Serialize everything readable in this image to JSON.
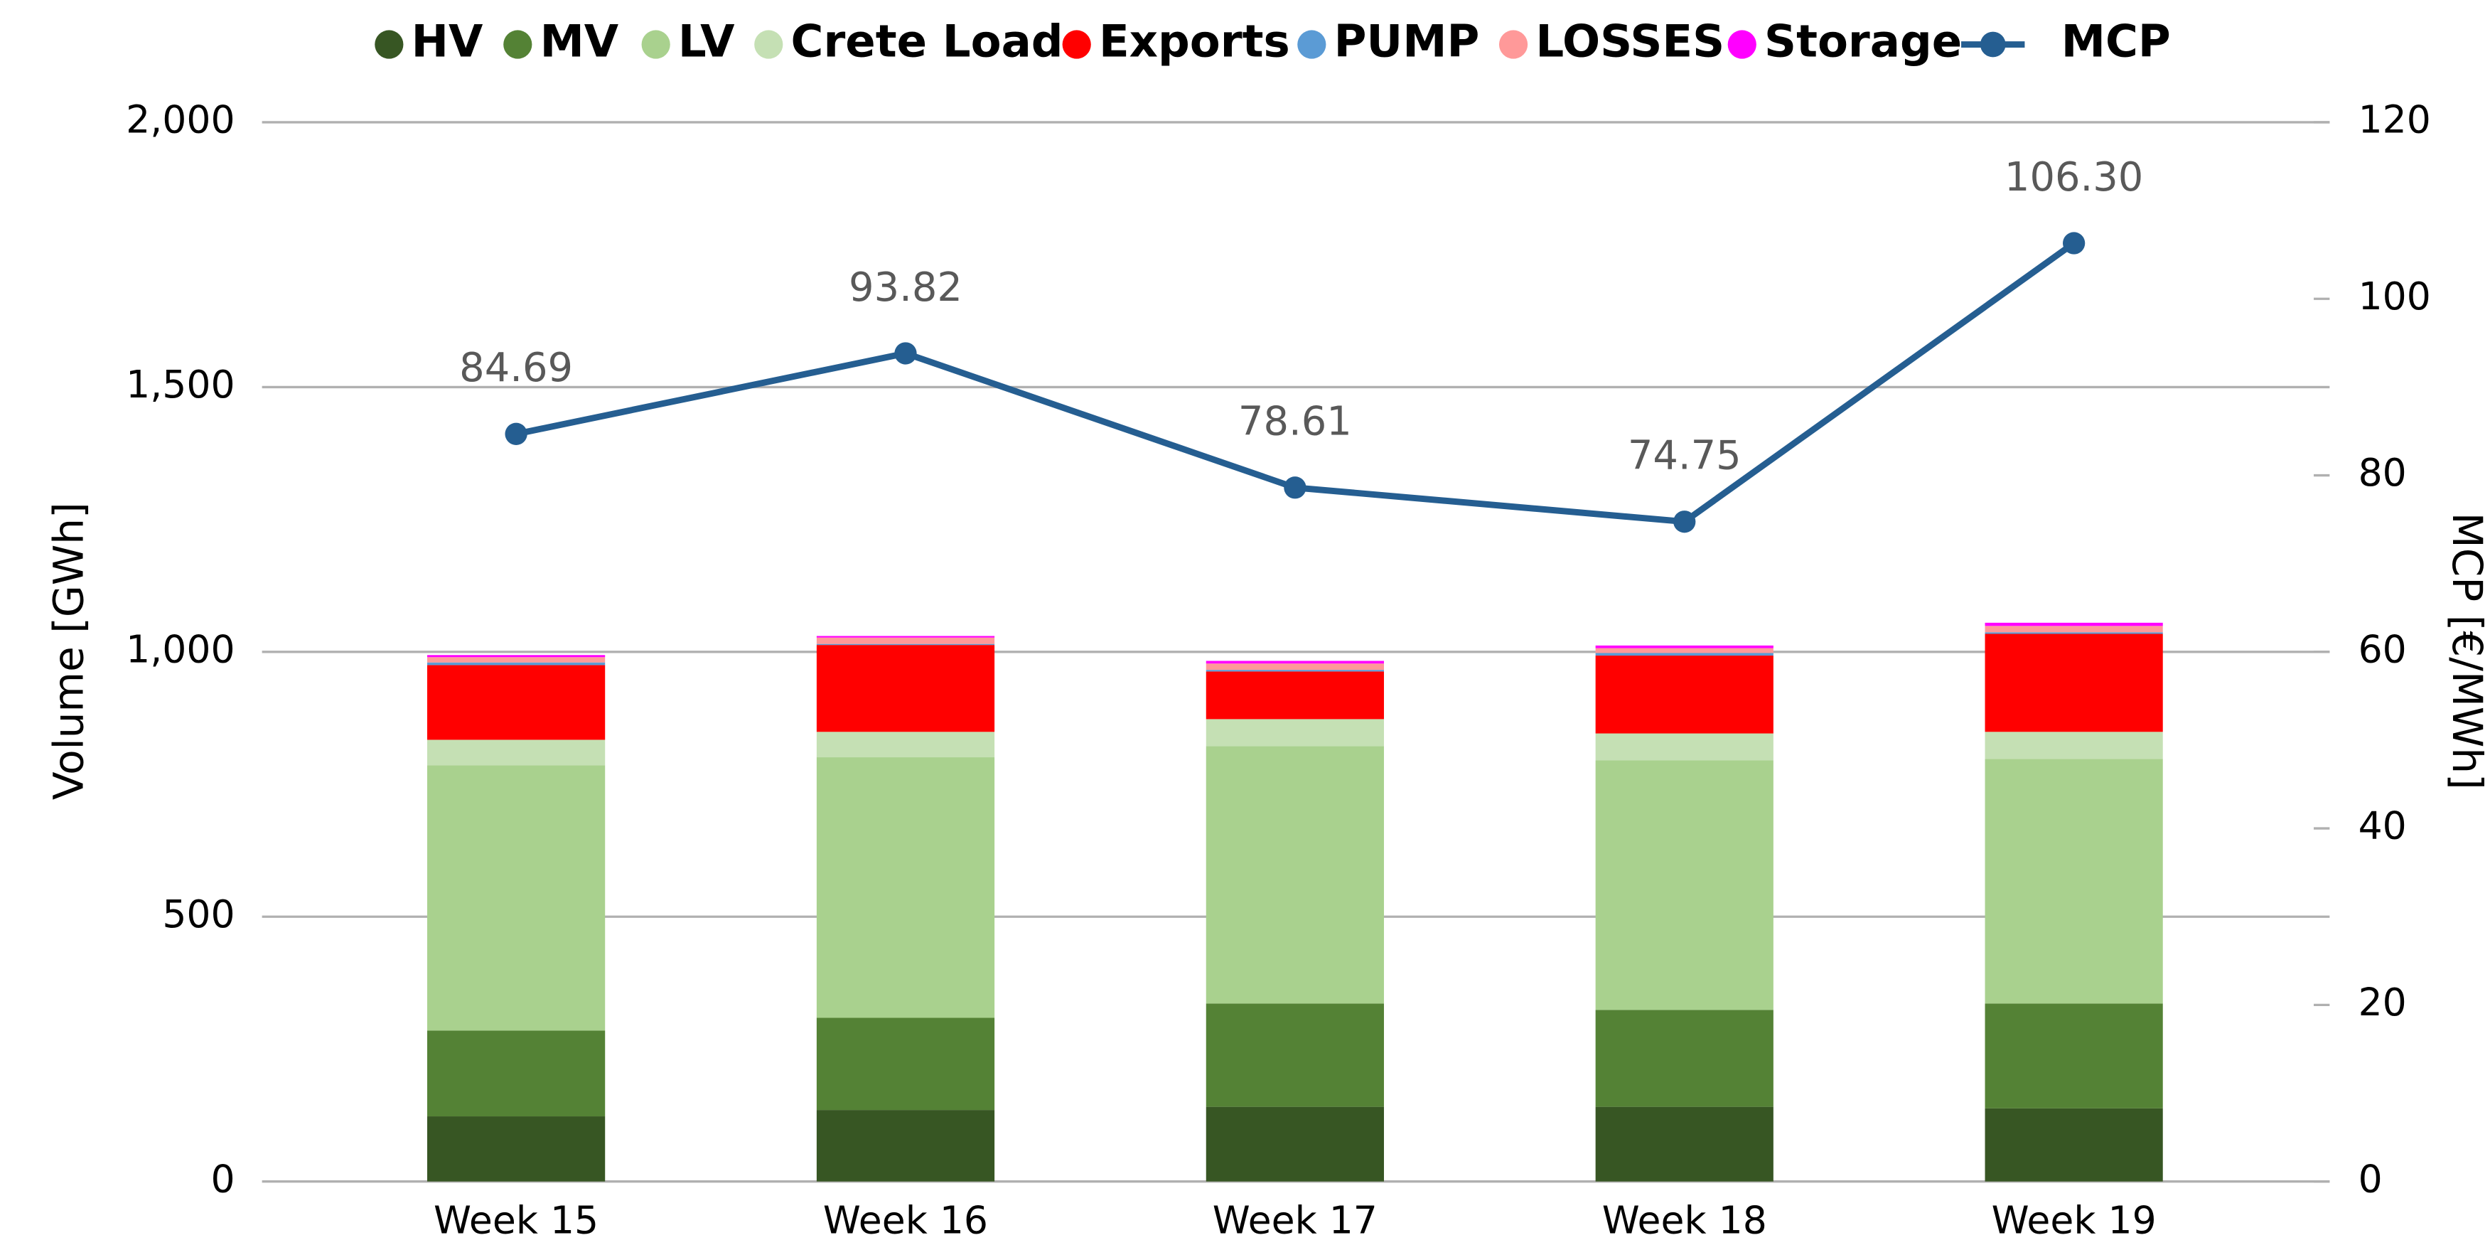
{
  "chart_data": {
    "type": "bar",
    "categories": [
      "Week 15",
      "Week 16",
      "Week 17",
      "Week 18",
      "Week 19"
    ],
    "stacked": true,
    "series": [
      {
        "name": "HV",
        "color": "#375623",
        "values": [
          123,
          135,
          141,
          141,
          138
        ]
      },
      {
        "name": "MV",
        "color": "#548235",
        "values": [
          162,
          174,
          195,
          183,
          198
        ]
      },
      {
        "name": "LV",
        "color": "#a9d18e",
        "values": [
          501,
          492,
          486,
          471,
          462
        ]
      },
      {
        "name": "Crete Load",
        "color": "#c5e0b4",
        "values": [
          48,
          48,
          51,
          51,
          51
        ]
      },
      {
        "name": "Exports",
        "color": "#ff0000",
        "values": [
          141,
          164,
          90,
          147,
          185
        ]
      },
      {
        "name": "PUMP",
        "color": "#5b9bd5",
        "values": [
          5,
          2,
          3,
          5,
          3
        ]
      },
      {
        "name": "LOSSES",
        "color": "#ff9999",
        "values": [
          10,
          12,
          12,
          9,
          12
        ]
      },
      {
        "name": "Storage",
        "color": "#ff00ff",
        "values": [
          4,
          3,
          5,
          5,
          6
        ]
      },
      {
        "name": "MCP",
        "color": "#255e91",
        "type": "line",
        "axis": "y2",
        "values": [
          84.69,
          93.82,
          78.61,
          74.75,
          106.3
        ],
        "value_labels": [
          "84.69",
          "93.82",
          "78.61",
          "74.75",
          "106.30"
        ]
      }
    ],
    "ylabel": "Volume [GWh]",
    "y2label": "MCP [€/MWh]",
    "ylim": [
      0,
      2000
    ],
    "yticks": [
      0,
      500,
      {
        "value": 1000,
        "label": "1,000"
      },
      {
        "value": 1500,
        "label": "1,500"
      },
      {
        "value": 2000,
        "label": "2,000"
      }
    ],
    "y2lim": [
      0,
      120
    ],
    "y2ticks": [
      0,
      20,
      40,
      60,
      80,
      100,
      120
    ],
    "grid": true,
    "legend": "top"
  }
}
